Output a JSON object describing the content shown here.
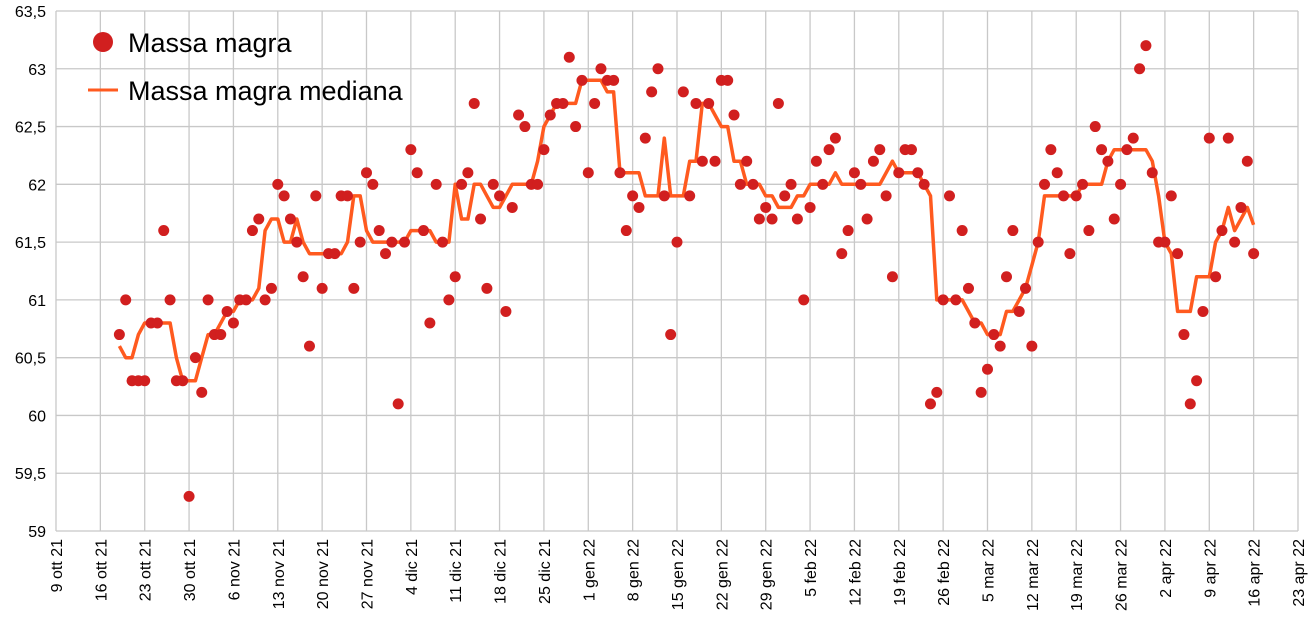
{
  "chart_data": {
    "type": "scatter",
    "title": "",
    "xlabel": "",
    "ylabel": "",
    "ylim": [
      59,
      63.5
    ],
    "y_ticks": [
      "59",
      "59,5",
      "60",
      "60,5",
      "61",
      "61,5",
      "62",
      "62,5",
      "63",
      "63,5"
    ],
    "y_tick_values": [
      59,
      59.5,
      60,
      60.5,
      61,
      61.5,
      62,
      62.5,
      63,
      63.5
    ],
    "x_ticks": [
      "9 ott 21",
      "16 ott 21",
      "23 ott 21",
      "30 ott 21",
      "6 nov 21",
      "13 nov 21",
      "20 nov 21",
      "27 nov 21",
      "4 dic 21",
      "11 dic 21",
      "18 dic 21",
      "25 dic 21",
      "1 gen 22",
      "8 gen 22",
      "15 gen 22",
      "22 gen 22",
      "29 gen 22",
      "5 feb 22",
      "12 feb 22",
      "19 feb 22",
      "26 feb 22",
      "5 mar 22",
      "12 mar 22",
      "19 mar 22",
      "26 mar 22",
      "2 apr 22",
      "9 apr 22",
      "16 apr 22",
      "23 apr 22"
    ],
    "x_range_days": [
      0,
      196
    ],
    "x_start_day": 10,
    "x_step_days": 1,
    "grid": true,
    "legend_position": "top-left",
    "colors": {
      "points": "#d11f1f",
      "median": "#ff5a1f",
      "grid": "#c8c8c8"
    },
    "series": [
      {
        "name": "Massa magra",
        "kind": "scatter",
        "values": [
          60.7,
          61.0,
          60.3,
          60.3,
          60.3,
          60.8,
          60.8,
          61.6,
          61.0,
          60.3,
          60.3,
          59.3,
          60.5,
          60.2,
          61.0,
          60.7,
          60.7,
          60.9,
          60.8,
          61.0,
          61.0,
          61.6,
          61.7,
          61.0,
          61.1,
          62.0,
          61.9,
          61.7,
          61.5,
          61.2,
          60.6,
          61.9,
          61.1,
          61.4,
          61.4,
          61.9,
          61.9,
          61.1,
          61.5,
          62.1,
          62.0,
          61.6,
          61.4,
          61.5,
          60.1,
          61.5,
          62.3,
          62.1,
          61.6,
          60.8,
          62.0,
          61.5,
          61.0,
          61.2,
          62.0,
          62.1,
          62.7,
          61.7,
          61.1,
          62.0,
          61.9,
          60.9,
          61.8,
          62.6,
          62.5,
          62.0,
          62.0,
          62.3,
          62.6,
          62.7,
          62.7,
          63.1,
          62.5,
          62.9,
          62.1,
          62.7,
          63.0,
          62.9,
          62.9,
          62.1,
          61.6,
          61.9,
          61.8,
          62.4,
          62.8,
          63.0,
          61.9,
          60.7,
          61.5,
          62.8,
          61.9,
          62.7,
          62.2,
          62.7,
          62.2,
          62.9,
          62.9,
          62.6,
          62.0,
          62.2,
          62.0,
          61.7,
          61.8,
          61.7,
          62.7,
          61.9,
          62.0,
          61.7,
          61.0,
          61.8,
          62.2,
          62.0,
          62.3,
          62.4,
          61.4,
          61.6,
          62.1,
          62.0,
          61.7,
          62.2,
          62.3,
          61.9,
          61.2,
          62.1,
          62.3,
          62.3,
          62.1,
          62.0,
          60.1,
          60.2,
          61.0,
          61.9,
          61.0,
          61.6,
          61.1,
          60.8,
          60.2,
          60.4,
          60.7,
          60.6,
          61.2,
          61.6,
          60.9,
          61.1,
          60.6,
          61.5,
          62.0,
          62.3,
          62.1,
          61.9,
          61.4,
          61.9,
          62.0,
          61.6,
          62.5,
          62.3,
          62.2,
          61.7,
          62.0,
          62.3,
          62.4,
          63.0,
          63.2,
          62.1,
          61.5,
          61.5,
          61.9,
          61.4,
          60.7,
          60.1,
          60.3,
          60.9,
          62.4,
          61.2,
          61.6,
          62.4,
          61.5,
          61.8,
          62.2,
          61.4
        ]
      },
      {
        "name": "Massa magra mediana",
        "kind": "line",
        "values": [
          60.6,
          60.5,
          60.5,
          60.7,
          60.8,
          60.8,
          60.8,
          60.8,
          60.8,
          60.5,
          60.3,
          60.3,
          60.3,
          60.5,
          60.7,
          60.7,
          60.8,
          60.9,
          60.9,
          61.0,
          61.0,
          61.0,
          61.1,
          61.6,
          61.7,
          61.7,
          61.5,
          61.5,
          61.7,
          61.5,
          61.4,
          61.4,
          61.4,
          61.4,
          61.4,
          61.4,
          61.5,
          61.9,
          61.9,
          61.6,
          61.5,
          61.5,
          61.5,
          61.5,
          61.5,
          61.5,
          61.6,
          61.6,
          61.6,
          61.6,
          61.5,
          61.5,
          61.5,
          62.0,
          61.7,
          61.7,
          62.0,
          62.0,
          61.9,
          61.8,
          61.8,
          61.9,
          62.0,
          62.0,
          62.0,
          62.0,
          62.2,
          62.5,
          62.6,
          62.7,
          62.7,
          62.7,
          62.7,
          62.9,
          62.9,
          62.9,
          62.9,
          62.8,
          62.8,
          62.1,
          62.1,
          62.1,
          62.1,
          61.9,
          61.9,
          61.9,
          62.4,
          61.9,
          61.9,
          61.9,
          62.2,
          62.2,
          62.7,
          62.7,
          62.6,
          62.5,
          62.5,
          62.2,
          62.2,
          62.0,
          62.0,
          62.0,
          61.9,
          61.9,
          61.8,
          61.8,
          61.8,
          61.9,
          61.9,
          62.0,
          62.0,
          62.0,
          62.0,
          62.1,
          62.0,
          62.0,
          62.0,
          62.0,
          62.0,
          62.0,
          62.0,
          62.1,
          62.2,
          62.1,
          62.1,
          62.1,
          62.1,
          62.0,
          61.9,
          61.0,
          61.0,
          61.0,
          61.0,
          61.0,
          60.9,
          60.8,
          60.8,
          60.7,
          60.7,
          60.7,
          60.9,
          60.9,
          61.0,
          61.1,
          61.3,
          61.5,
          61.9,
          61.9,
          61.9,
          61.9,
          61.9,
          61.9,
          62.0,
          62.0,
          62.0,
          62.0,
          62.2,
          62.3,
          62.3,
          62.3,
          62.3,
          62.3,
          62.3,
          62.2,
          61.9,
          61.5,
          61.4,
          60.9,
          60.9,
          60.9,
          61.2,
          61.2,
          61.2,
          61.5,
          61.6,
          61.8,
          61.6,
          61.7,
          61.8,
          61.65
        ]
      }
    ]
  }
}
